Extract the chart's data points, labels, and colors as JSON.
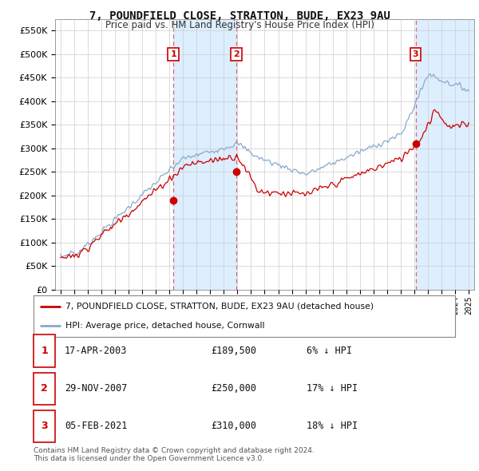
{
  "title": "7, POUNDFIELD CLOSE, STRATTON, BUDE, EX23 9AU",
  "subtitle": "Price paid vs. HM Land Registry's House Price Index (HPI)",
  "legend_line1": "7, POUNDFIELD CLOSE, STRATTON, BUDE, EX23 9AU (detached house)",
  "legend_line2": "HPI: Average price, detached house, Cornwall",
  "sale_color": "#cc0000",
  "hpi_color": "#88aacc",
  "vline_color": "#dd6666",
  "shade_color": "#ddeeff",
  "transactions": [
    {
      "num": 1,
      "date": "17-APR-2003",
      "price": 189500,
      "x_year": 2003.29
    },
    {
      "num": 2,
      "date": "29-NOV-2007",
      "price": 250000,
      "x_year": 2007.91
    },
    {
      "num": 3,
      "date": "05-FEB-2021",
      "price": 310000,
      "x_year": 2021.09
    }
  ],
  "table_rows": [
    {
      "num": 1,
      "date": "17-APR-2003",
      "price": "£189,500",
      "pct": "6% ↓ HPI"
    },
    {
      "num": 2,
      "date": "29-NOV-2007",
      "price": "£250,000",
      "pct": "17% ↓ HPI"
    },
    {
      "num": 3,
      "date": "05-FEB-2021",
      "price": "£310,000",
      "pct": "18% ↓ HPI"
    }
  ],
  "footnote": "Contains HM Land Registry data © Crown copyright and database right 2024.\nThis data is licensed under the Open Government Licence v3.0.",
  "ylim": [
    0,
    575000
  ],
  "yticks": [
    0,
    50000,
    100000,
    150000,
    200000,
    250000,
    300000,
    350000,
    400000,
    450000,
    500000,
    550000
  ],
  "xlim_start": 1994.6,
  "xlim_end": 2025.4,
  "background_color": "#ffffff",
  "plot_bg_color": "#ffffff"
}
